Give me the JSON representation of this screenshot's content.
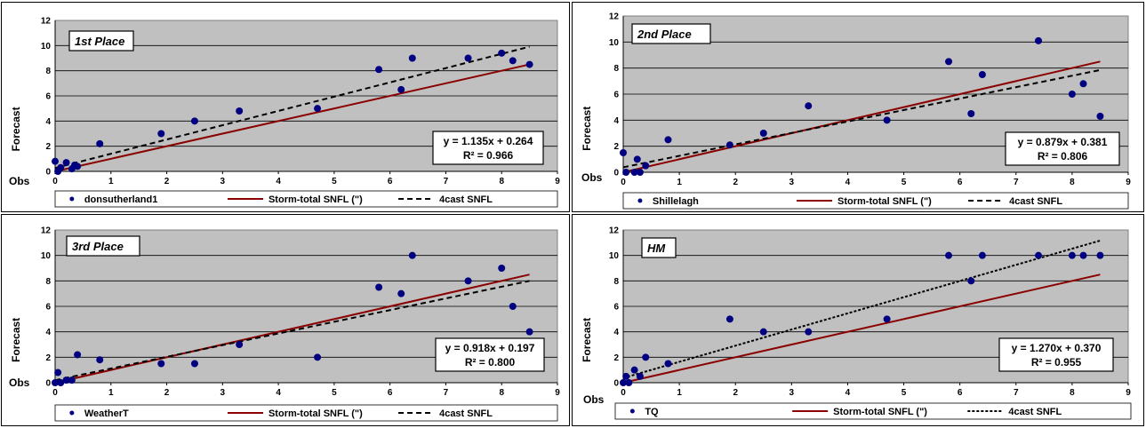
{
  "chart_data": [
    {
      "type": "scatter",
      "title": "1st Place",
      "xlabel": "Obs",
      "ylabel": "Forecast",
      "xlim": [
        0,
        9
      ],
      "ylim": [
        0,
        12
      ],
      "xticks": [
        "0",
        "1",
        "2",
        "3",
        "4",
        "5",
        "6",
        "7",
        "8",
        "9"
      ],
      "yticks": [
        "0",
        "2",
        "4",
        "6",
        "8",
        "10",
        "12"
      ],
      "points": [
        [
          0,
          0.8
        ],
        [
          0.05,
          0
        ],
        [
          0.1,
          0.3
        ],
        [
          0.2,
          0.7
        ],
        [
          0.3,
          0.2
        ],
        [
          0.35,
          0.5
        ],
        [
          0.4,
          0.4
        ],
        [
          0.8,
          2.2
        ],
        [
          1.9,
          3
        ],
        [
          2.5,
          4
        ],
        [
          3.3,
          4.8
        ],
        [
          4.7,
          5
        ],
        [
          5.8,
          8.1
        ],
        [
          6.2,
          6.5
        ],
        [
          6.4,
          9
        ],
        [
          7.4,
          9
        ],
        [
          8,
          9.4
        ],
        [
          8.2,
          8.8
        ],
        [
          8.5,
          8.5
        ]
      ],
      "obs_line": [
        [
          0,
          0
        ],
        [
          8.5,
          8.5
        ]
      ],
      "trend_line": [
        [
          0,
          0.264
        ],
        [
          8.5,
          9.9115
        ]
      ],
      "equation": "y = 1.135x + 0.264",
      "r2": "R² = 0.966",
      "legend": [
        "donsutherland1",
        "Storm-total SNFL (\")",
        "4cast SNFL"
      ],
      "trend_dash": "6,4"
    },
    {
      "type": "scatter",
      "title": "2nd Place",
      "xlabel": "Obs",
      "ylabel": "Forecast",
      "xlim": [
        0,
        9
      ],
      "ylim": [
        0,
        12
      ],
      "xticks": [
        "0",
        "1",
        "2",
        "3",
        "4",
        "5",
        "6",
        "7",
        "8",
        "9"
      ],
      "yticks": [
        "0",
        "2",
        "4",
        "6",
        "8",
        "10",
        "12"
      ],
      "points": [
        [
          0,
          1.5
        ],
        [
          0.05,
          0
        ],
        [
          0.2,
          0
        ],
        [
          0.25,
          1
        ],
        [
          0.3,
          0
        ],
        [
          0.4,
          0.5
        ],
        [
          0.8,
          2.5
        ],
        [
          1.9,
          2.1
        ],
        [
          2.5,
          3
        ],
        [
          3.3,
          5.1
        ],
        [
          4.7,
          4
        ],
        [
          5.8,
          8.5
        ],
        [
          6.2,
          4.5
        ],
        [
          6.4,
          7.5
        ],
        [
          7.4,
          10.1
        ],
        [
          8,
          6
        ],
        [
          8.2,
          6.8
        ],
        [
          8.5,
          4.3
        ]
      ],
      "obs_line": [
        [
          0,
          0
        ],
        [
          8.5,
          8.5
        ]
      ],
      "trend_line": [
        [
          0,
          0.381
        ],
        [
          8.5,
          7.8525
        ]
      ],
      "equation": "y = 0.879x + 0.381",
      "r2": "R² = 0.806",
      "legend": [
        "Shillelagh",
        "Storm-total SNFL (\")",
        "4cast SNFL"
      ],
      "trend_dash": "6,4"
    },
    {
      "type": "scatter",
      "title": "3rd Place",
      "xlabel": "Obs",
      "ylabel": "Forecast",
      "xlim": [
        0,
        9
      ],
      "ylim": [
        0,
        12
      ],
      "xticks": [
        "0",
        "1",
        "2",
        "3",
        "4",
        "5",
        "6",
        "7",
        "8",
        "9"
      ],
      "yticks": [
        "0",
        "2",
        "4",
        "6",
        "8",
        "10",
        "12"
      ],
      "points": [
        [
          0,
          0
        ],
        [
          0.05,
          0.8
        ],
        [
          0.1,
          0
        ],
        [
          0.2,
          0.2
        ],
        [
          0.3,
          0.2
        ],
        [
          0.4,
          2.2
        ],
        [
          0.8,
          1.8
        ],
        [
          1.9,
          1.5
        ],
        [
          2.5,
          1.5
        ],
        [
          3.3,
          3
        ],
        [
          4.7,
          2
        ],
        [
          5.8,
          7.5
        ],
        [
          6.2,
          7
        ],
        [
          6.4,
          10
        ],
        [
          7.4,
          8
        ],
        [
          8,
          9
        ],
        [
          8.2,
          6
        ],
        [
          8.5,
          4
        ]
      ],
      "obs_line": [
        [
          0,
          0
        ],
        [
          8.5,
          8.5
        ]
      ],
      "trend_line": [
        [
          0,
          0.197
        ],
        [
          8.5,
          8.0
        ],
        [
          8.5,
          8.0
        ]
      ],
      "equation": "y = 0.918x + 0.197",
      "r2": "R² = 0.800",
      "legend": [
        "WeatherT",
        "Storm-total SNFL (\")",
        "4cast SNFL"
      ],
      "trend_dash": "6,4"
    },
    {
      "type": "scatter",
      "title": "HM",
      "xlabel": "Obs",
      "ylabel": "Forecast",
      "xlim": [
        0,
        9
      ],
      "ylim": [
        0,
        12
      ],
      "xticks": [
        "0",
        "1",
        "2",
        "3",
        "4",
        "5",
        "6",
        "7",
        "8",
        "9"
      ],
      "yticks": [
        "0",
        "2",
        "4",
        "6",
        "8",
        "10",
        "12"
      ],
      "points": [
        [
          0,
          0
        ],
        [
          0.05,
          0.5
        ],
        [
          0.1,
          0
        ],
        [
          0.2,
          1
        ],
        [
          0.3,
          0.5
        ],
        [
          0.4,
          2
        ],
        [
          0.8,
          1.5
        ],
        [
          1.9,
          5
        ],
        [
          2.5,
          4
        ],
        [
          3.3,
          4
        ],
        [
          4.7,
          5
        ],
        [
          5.8,
          10
        ],
        [
          6.2,
          8
        ],
        [
          6.4,
          10
        ],
        [
          7.4,
          10
        ],
        [
          8,
          10
        ],
        [
          8.2,
          10
        ],
        [
          8.5,
          10
        ]
      ],
      "obs_line": [
        [
          0,
          0
        ],
        [
          8.5,
          8.5
        ]
      ],
      "trend_line": [
        [
          0,
          0.37
        ],
        [
          8.5,
          11.165
        ]
      ],
      "equation": "y = 1.270x + 0.370",
      "r2": "R² = 0.955",
      "legend": [
        "TQ",
        "Storm-total SNFL (\")",
        "4cast SNFL"
      ],
      "trend_dash": "3,2"
    }
  ],
  "colors": {
    "plot_bg": "#c0c0c0",
    "point": "#000080",
    "obs_line": "#8b0000",
    "trend_line": "#000000",
    "grid": "#000000"
  }
}
